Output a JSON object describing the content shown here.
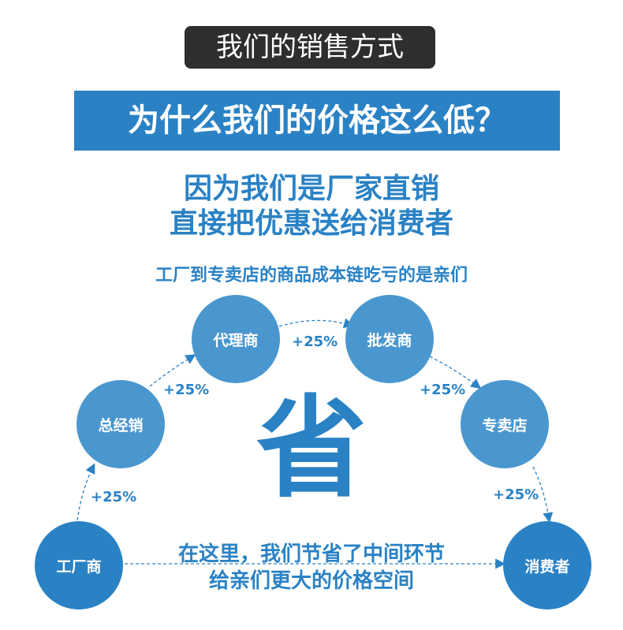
{
  "top_label": "我们的销售方式",
  "banner": "为什么我们的价格这么低？",
  "reason_line1": "因为我们是厂家直销",
  "reason_line2": "直接把优惠送给消费者",
  "chain_caption": "工厂到专卖店的商品成本链吃亏的是亲们",
  "nodes": [
    "工厂商",
    "总经销",
    "代理商",
    "批发商",
    "专卖店",
    "消费者"
  ],
  "markups": [
    "+25%",
    "+25%",
    "+25%",
    "+25%",
    "+25%"
  ],
  "big_char": "省",
  "bottom_line1": "在这里，我们节省了中间环节",
  "bottom_line2": "给亲们更大的价格空间",
  "colors": {
    "primary": "#2a82c5",
    "light_circle": "#4a97cf",
    "label_bg": "#2e2e2e"
  }
}
